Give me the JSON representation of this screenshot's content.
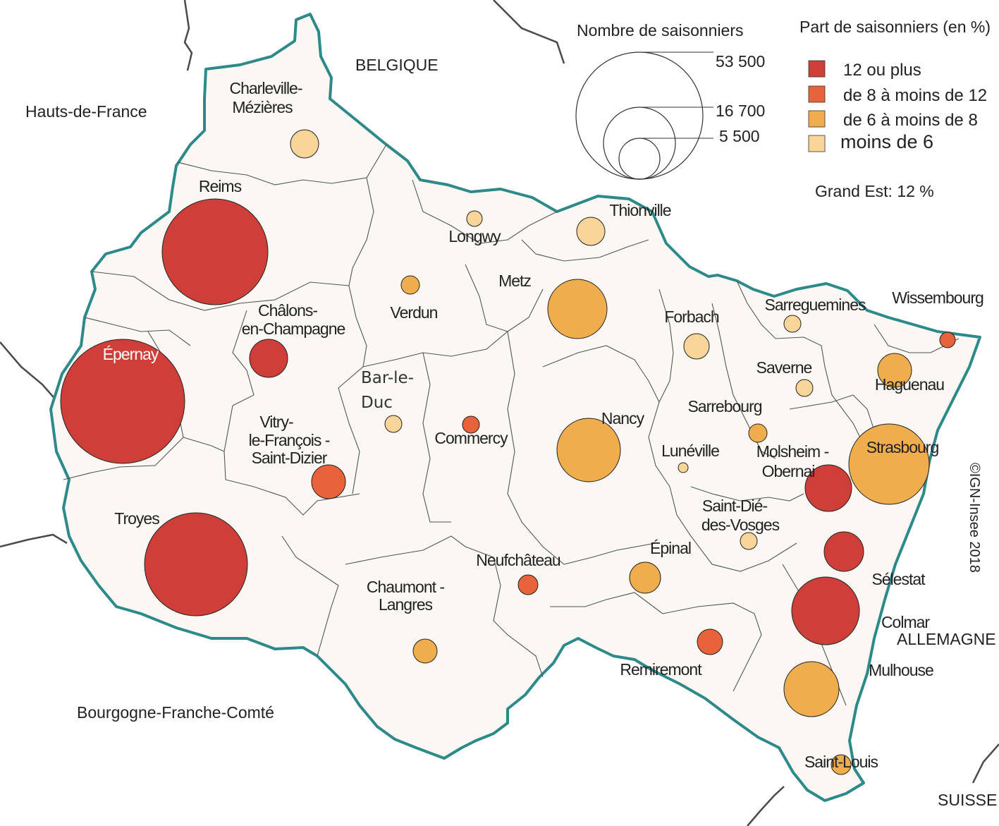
{
  "legend_size": {
    "title": "Nombre de saisonniers",
    "values": [
      "53 500",
      "16 700",
      "5 500"
    ]
  },
  "legend_color": {
    "title": "Part de saisonniers (en %)",
    "classes": [
      {
        "label": "12 ou plus",
        "color": "#cf3f3a"
      },
      {
        "label": "de 8 à moins de 12",
        "color": "#e8623a"
      },
      {
        "label": "de 6 à moins de 8",
        "color": "#f0ad4e"
      },
      {
        "label": "moins de 6",
        "color": "#f9d59a"
      }
    ],
    "total": "Grand Est: 12 %"
  },
  "countries": {
    "belgique": "BELGIQUE",
    "hauts_de_france": "Hauts-de-France",
    "bourgogne": "Bourgogne-Franche-Comté",
    "allemagne": "ALLEMAGNE",
    "suisse": "SUISSE"
  },
  "copyright": "©IGN-Insee 2018",
  "cities": {
    "charleville": [
      "Charleville-",
      "Mézières"
    ],
    "reims": "Reims",
    "chalons": [
      "Châlons-",
      "en-Champagne"
    ],
    "epernay": "Épernay",
    "vitry": [
      "Vitry-",
      "le-François -",
      "Saint-Dizier"
    ],
    "troyes": "Troyes",
    "bar_le_duc": [
      "Bar-le-",
      "Duc"
    ],
    "commercy": "Commercy",
    "verdun": "Verdun",
    "longwy": "Longwy",
    "metz": "Metz",
    "thionville": "Thionville",
    "forbach": "Forbach",
    "sarreguemines": "Sarreguemines",
    "wissembourg": "Wissembourg",
    "saverne": "Saverne",
    "haguenau": "Haguenau",
    "sarrebourg": "Sarrebourg",
    "nancy": "Nancy",
    "luneville": "Lunéville",
    "molsheim": [
      "Molsheim -",
      "Obernai"
    ],
    "strasbourg": "Strasbourg",
    "saint_die": [
      "Saint-Dié-",
      "des-Vosges"
    ],
    "epinal": "Épinal",
    "selestat": "Sélestat",
    "colmar": "Colmar",
    "neufchateau": "Neufchâteau",
    "chaumont": [
      "Chaumont -",
      "Langres"
    ],
    "remiremont": "Remiremont",
    "mulhouse": "Mulhouse",
    "saint_louis": "Saint-Louis"
  }
}
